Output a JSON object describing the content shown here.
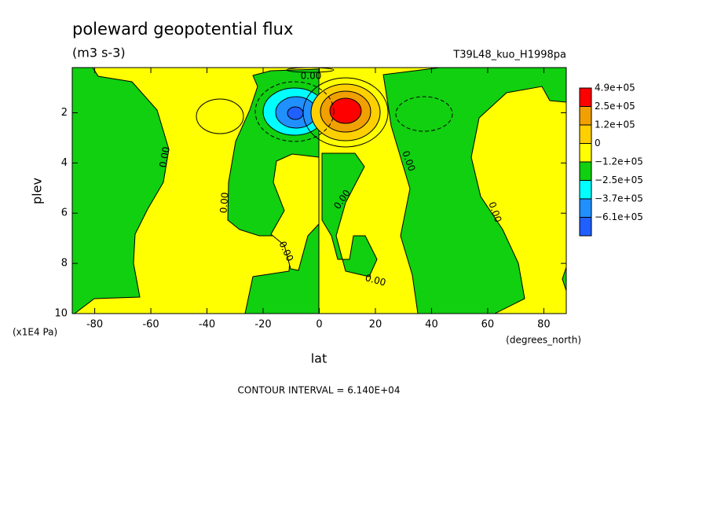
{
  "chart_data": {
    "type": "contour",
    "title": "poleward geopotential flux",
    "subtitle": "(m3 s-3)",
    "run_label": "T39L48_kuo_H1998pa",
    "xlabel": "lat",
    "xunit": "(degrees_north)",
    "ylabel": "plev",
    "yunit": "(x1E4 Pa)",
    "footer": "CONTOUR INTERVAL = 6.140E+04",
    "xlim": [
      -88,
      88
    ],
    "xticks": [
      -80,
      -60,
      -40,
      -20,
      0,
      20,
      40,
      60,
      80
    ],
    "ylim": [
      10,
      0.2
    ],
    "yticks": [
      2,
      4,
      6,
      8,
      10
    ],
    "contour_labels": [
      "0.00",
      "0.00",
      "0.00",
      "0.00",
      "0.00",
      "0.00",
      "0.00",
      "0.00"
    ],
    "colorbar": {
      "levels": [
        {
          "value": 490000,
          "label": "4.9e+05"
        },
        {
          "value": 250000,
          "label": "2.5e+05"
        },
        {
          "value": 120000,
          "label": "1.2e+05"
        },
        0,
        {
          "value": -120000,
          "label": "−1.2e+05"
        },
        {
          "value": -250000,
          "label": "−2.5e+05"
        },
        {
          "value": -370000,
          "label": "−3.7e+05"
        },
        {
          "value": -610000,
          "label": "−6.1e+05"
        }
      ],
      "colors": [
        "#ff0000",
        "#f0a000",
        "#ffd000",
        "#ffff00",
        "#10d010",
        "#00ffff",
        "#2090ff",
        "#2060ff"
      ]
    }
  }
}
